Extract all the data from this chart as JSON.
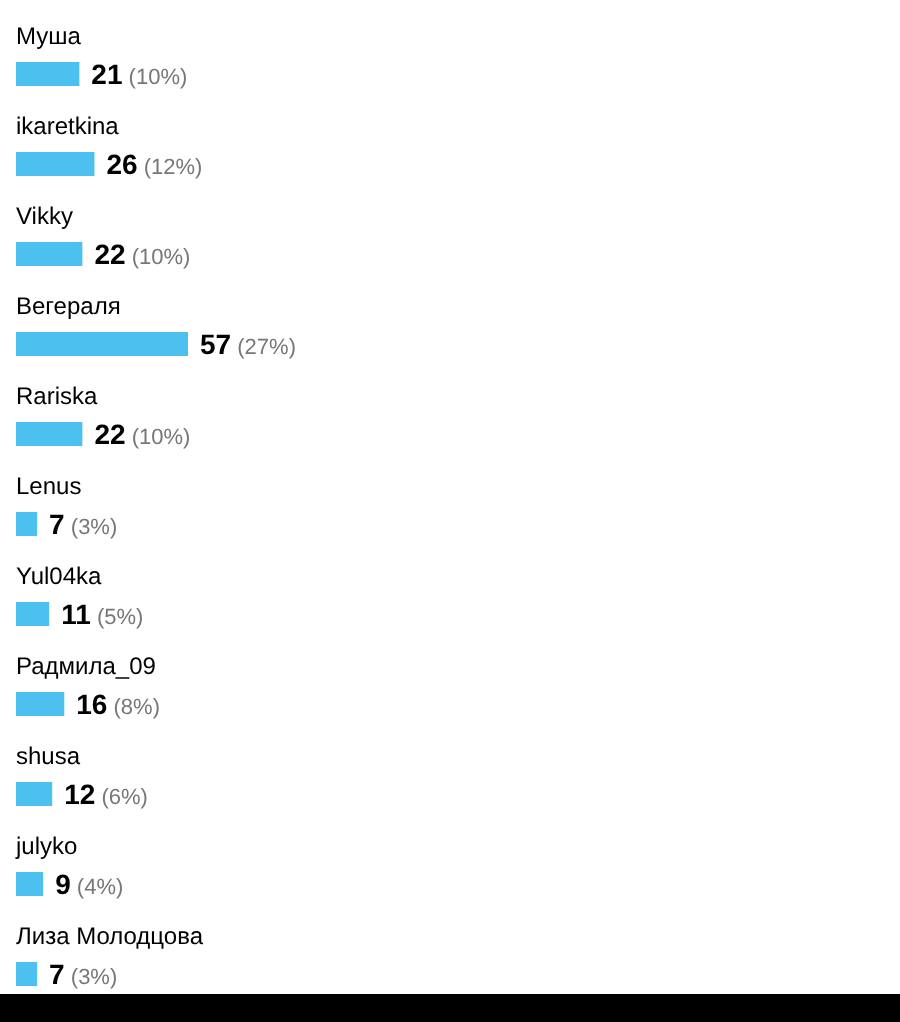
{
  "chart_data": {
    "type": "bar",
    "orientation": "horizontal",
    "categories": [
      "Муша",
      "ikaretkina",
      "Vikky",
      "Вегераля",
      "Rariska",
      "Lenus",
      "Yul04ka",
      "Радмила_09",
      "shusa",
      "julyko",
      "Лиза Молодцова"
    ],
    "values": [
      21,
      26,
      22,
      57,
      22,
      7,
      11,
      16,
      12,
      9,
      7
    ],
    "value_labels": [
      "21 (10%)",
      "26 (12%)",
      "22 (10%)",
      "57 (27%)",
      "22 (10%)",
      "7 (3%)",
      "11 (5%)",
      "16 (8%)",
      "12 (6%)",
      "9 (4%)",
      "7 (3%)"
    ],
    "color": "#4cc0ee"
  }
}
